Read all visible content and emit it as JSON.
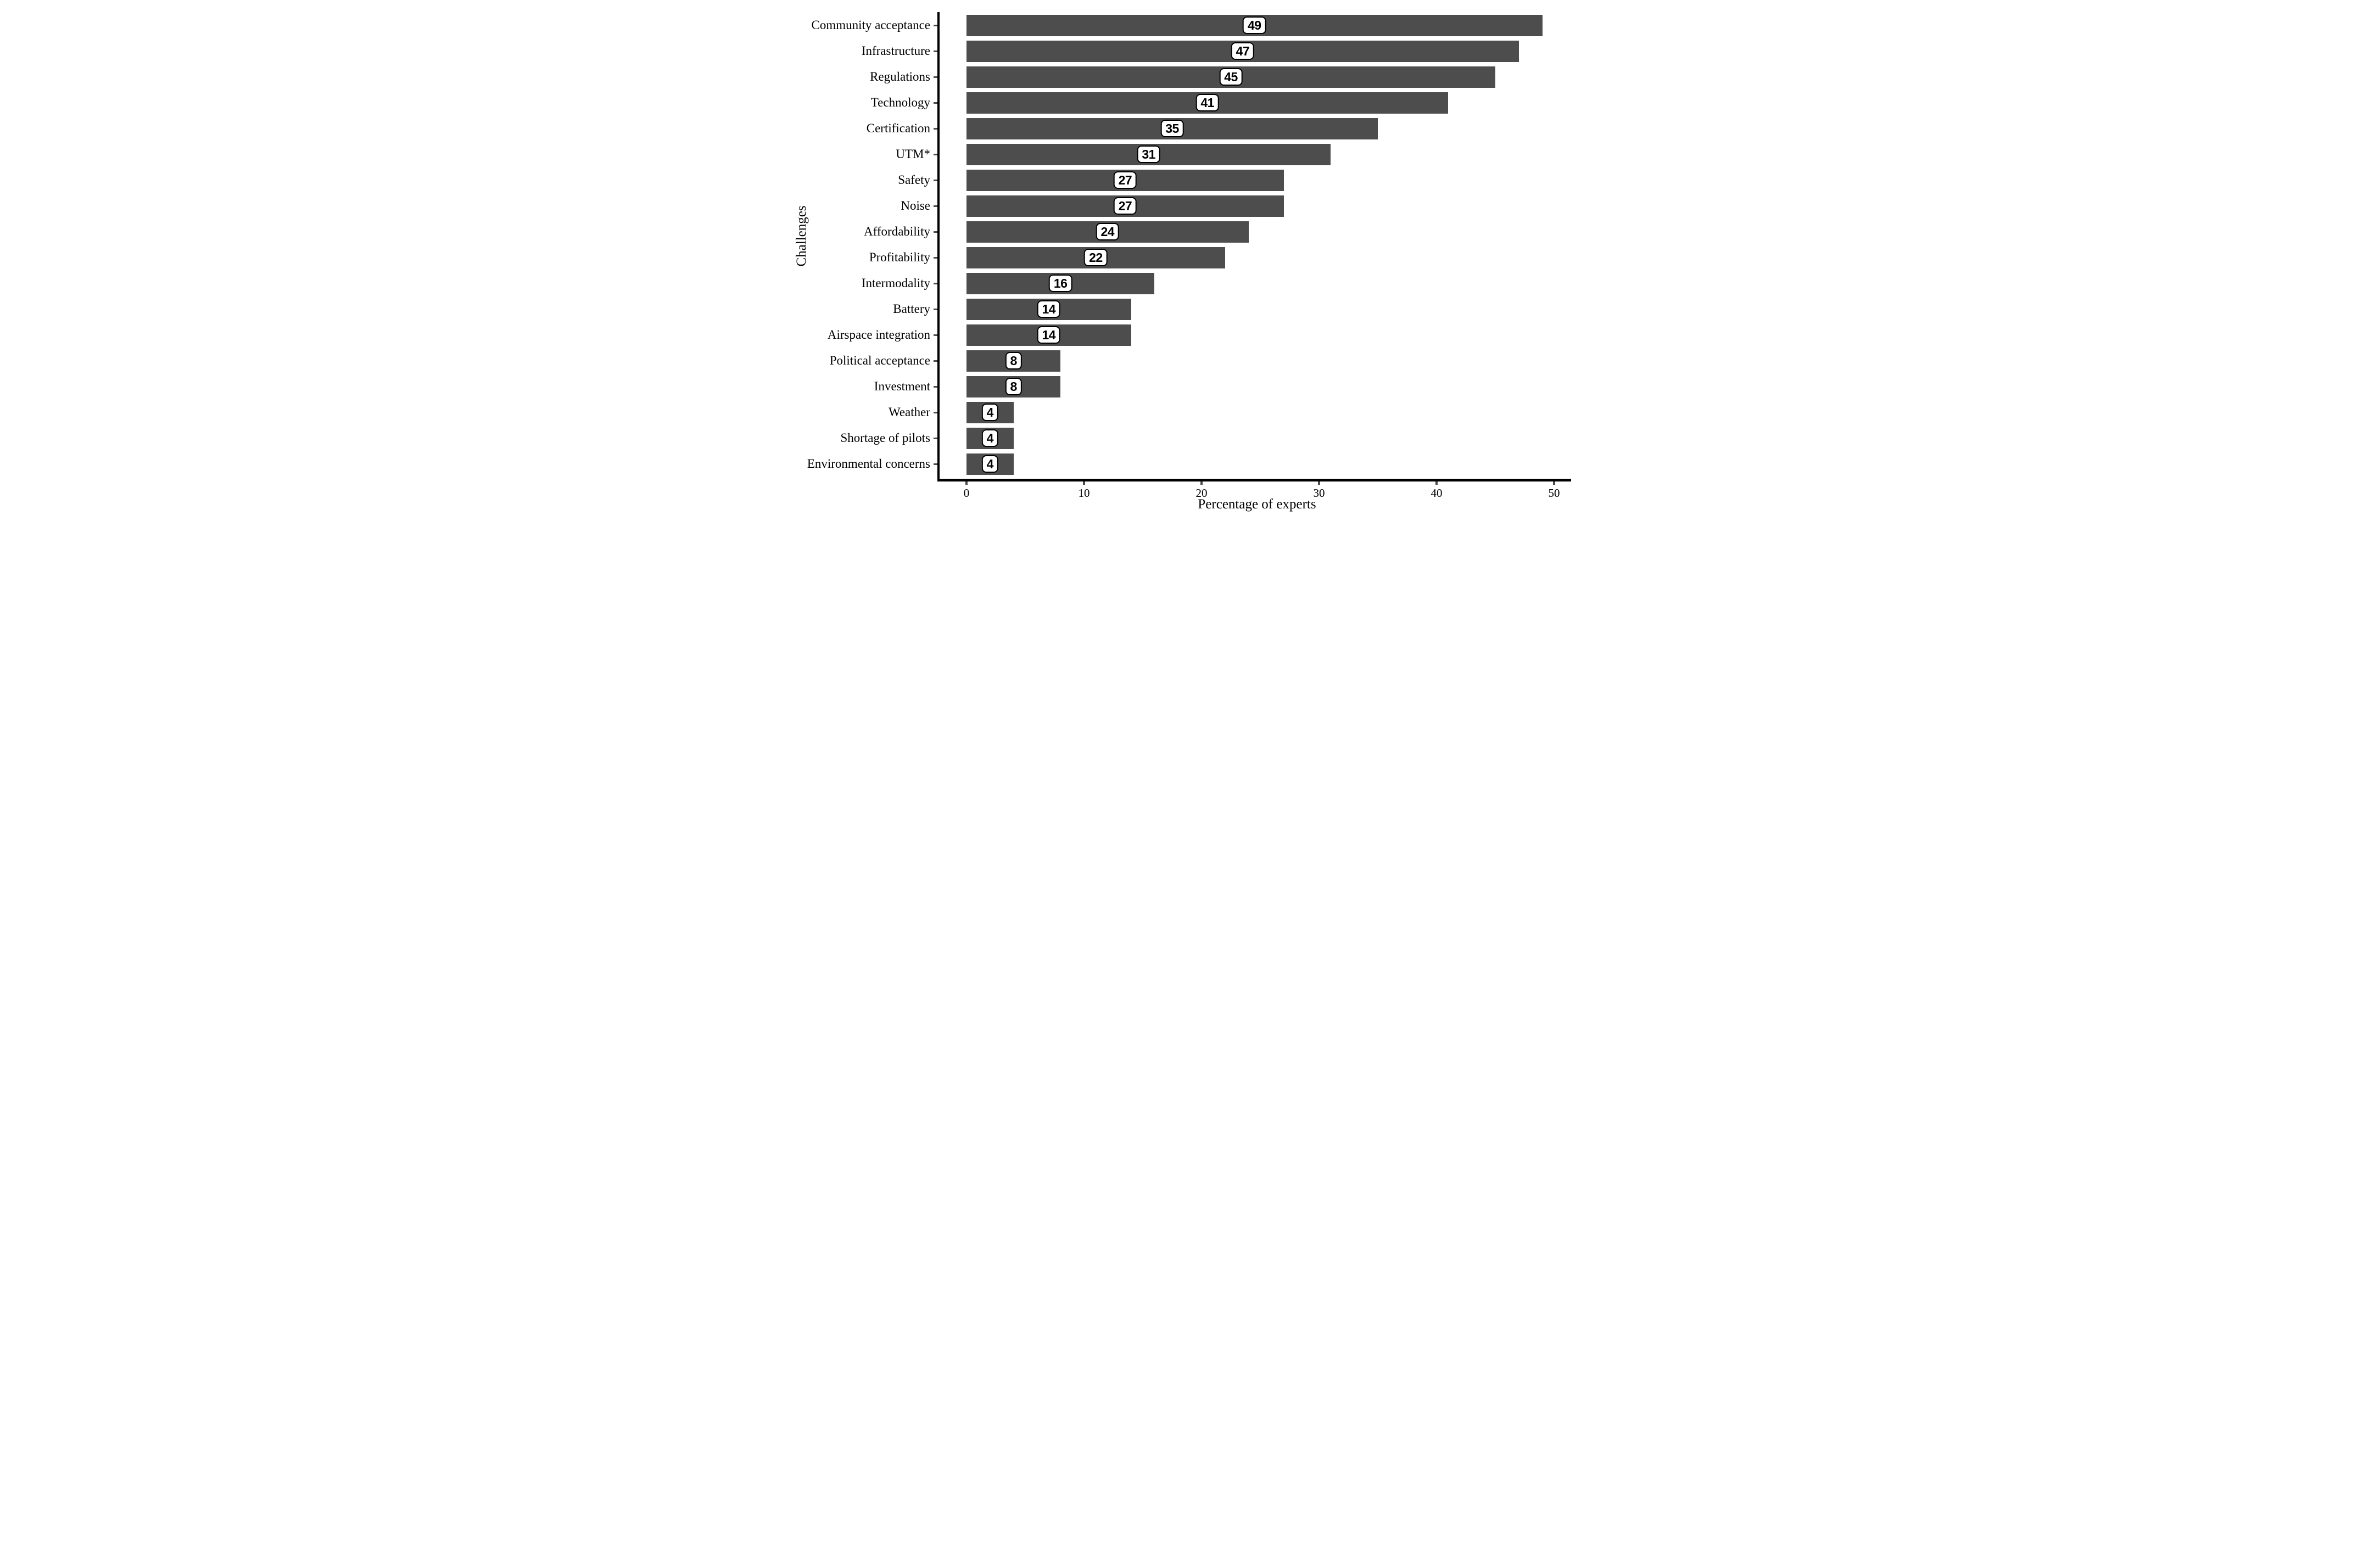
{
  "chart_data": {
    "type": "bar",
    "orientation": "horizontal",
    "title": "",
    "xlabel": "Percentage of experts",
    "ylabel": "Challenges",
    "xlim": [
      0,
      50
    ],
    "xticks": [
      0,
      10,
      20,
      30,
      40,
      50
    ],
    "grid": "off",
    "legend": "none",
    "bar_color": "#4d4d4d",
    "tick_color": "#4d4d4d",
    "axis_line_color": "#000000",
    "value_box": {
      "fill": "#ffffff",
      "border": "#000000"
    },
    "categories": [
      "Community acceptance",
      "Infrastructure",
      "Regulations",
      "Technology",
      "Certification",
      "UTM*",
      "Safety",
      "Noise",
      "Affordability",
      "Profitability",
      "Intermodality",
      "Battery",
      "Airspace integration",
      "Political acceptance",
      "Investment",
      "Weather",
      "Shortage of pilots",
      "Environmental concerns"
    ],
    "values": [
      49,
      47,
      45,
      41,
      35,
      31,
      27,
      27,
      24,
      22,
      16,
      14,
      14,
      8,
      8,
      4,
      4,
      4
    ]
  }
}
